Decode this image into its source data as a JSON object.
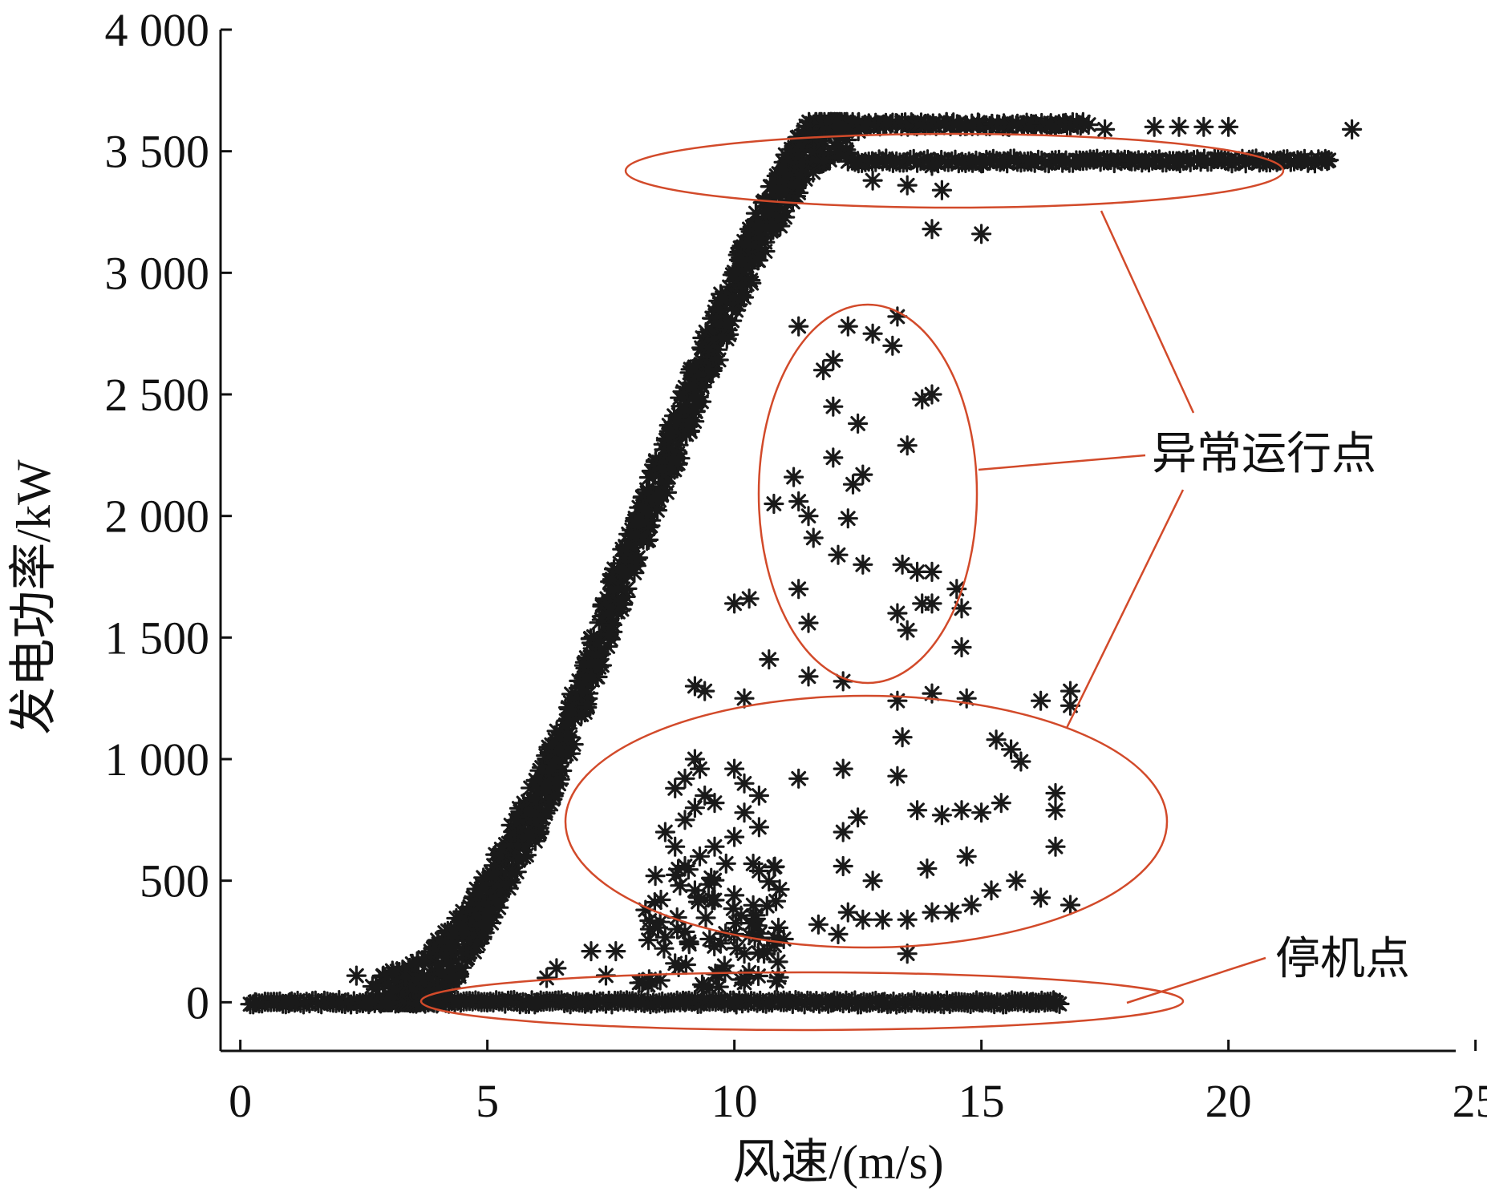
{
  "chart_data": {
    "type": "scatter",
    "marker": "asterisk",
    "xlabel": "风速/(m/s)",
    "ylabel": "发电功率/kW",
    "xlim": [
      -0.4,
      24.6
    ],
    "ylim": [
      -200,
      4000
    ],
    "x_ticks": [
      0,
      5,
      10,
      15,
      20,
      25
    ],
    "x_tick_labels": [
      "0",
      "5",
      "10",
      "15",
      "20",
      "25"
    ],
    "y_ticks": [
      0,
      500,
      1000,
      1500,
      2000,
      2500,
      3000,
      3500,
      4000
    ],
    "y_tick_labels": [
      "0",
      "500",
      "1 000",
      "1 500",
      "2 000",
      "2 500",
      "3 000",
      "3 500",
      "4 000"
    ],
    "grid": false,
    "colors": {
      "points": "#1a1a1a",
      "annotation": "#d24a2a",
      "axis": "#111111"
    },
    "series": [
      {
        "values_description_excluded": true,
        "normal_curve": [
          [
            0,
            0
          ],
          [
            3,
            0
          ],
          [
            3.8,
            80
          ],
          [
            4.5,
            250
          ],
          [
            5,
            420
          ],
          [
            5.5,
            620
          ],
          [
            6,
            800
          ],
          [
            6.5,
            1050
          ],
          [
            7,
            1320
          ],
          [
            7.5,
            1620
          ],
          [
            8,
            1900
          ],
          [
            8.5,
            2150
          ],
          [
            9,
            2420
          ],
          [
            9.5,
            2680
          ],
          [
            10,
            2920
          ],
          [
            10.5,
            3150
          ],
          [
            11,
            3350
          ],
          [
            11.5,
            3520
          ],
          [
            12,
            3600
          ],
          [
            13,
            3620
          ],
          [
            14,
            3620
          ],
          [
            15,
            3620
          ],
          [
            16,
            3620
          ],
          [
            17,
            3610
          ]
        ],
        "stopped_points": [
          [
            0.3,
            0
          ],
          [
            1,
            0
          ],
          [
            2,
            0
          ],
          [
            3,
            0
          ],
          [
            4,
            0
          ],
          [
            5,
            0
          ],
          [
            6,
            0
          ],
          [
            7,
            0
          ],
          [
            8,
            0
          ],
          [
            9,
            0
          ],
          [
            10,
            0
          ],
          [
            11,
            0
          ],
          [
            12,
            0
          ],
          [
            13,
            0
          ],
          [
            14,
            0
          ],
          [
            15,
            0
          ],
          [
            16,
            0
          ],
          [
            16.5,
            0
          ]
        ],
        "anomalous_high": [
          [
            12.5,
            3460
          ],
          [
            14,
            3440
          ],
          [
            15,
            3450
          ],
          [
            16,
            3460
          ],
          [
            17,
            3460
          ],
          [
            18,
            3460
          ],
          [
            19,
            3460
          ],
          [
            20,
            3460
          ],
          [
            21,
            3460
          ],
          [
            22,
            3460
          ],
          [
            12.8,
            3380
          ],
          [
            13.5,
            3360
          ],
          [
            14.2,
            3340
          ],
          [
            14,
            3180
          ],
          [
            15,
            3160
          ],
          [
            18.5,
            3600
          ],
          [
            19,
            3600
          ],
          [
            19.5,
            3600
          ],
          [
            20,
            3600
          ],
          [
            22.5,
            3590
          ],
          [
            17.5,
            3590
          ]
        ],
        "anomalous_mid": [
          [
            11.3,
            2780
          ],
          [
            12.3,
            2780
          ],
          [
            12.8,
            2750
          ],
          [
            13.3,
            2820
          ],
          [
            12,
            2640
          ],
          [
            11.8,
            2600
          ],
          [
            13.2,
            2700
          ],
          [
            14,
            2500
          ],
          [
            13.8,
            2480
          ],
          [
            12,
            2450
          ],
          [
            12.5,
            2380
          ],
          [
            13.5,
            2290
          ],
          [
            12,
            2240
          ],
          [
            12.6,
            2170
          ],
          [
            11.2,
            2160
          ],
          [
            12.4,
            2130
          ],
          [
            10.8,
            2050
          ],
          [
            11.3,
            2060
          ],
          [
            11.5,
            2000
          ],
          [
            12.3,
            1990
          ],
          [
            11.6,
            1910
          ],
          [
            12.1,
            1840
          ],
          [
            12.6,
            1800
          ],
          [
            13.4,
            1800
          ],
          [
            13.7,
            1770
          ],
          [
            14,
            1770
          ],
          [
            14.5,
            1700
          ],
          [
            13.8,
            1640
          ],
          [
            14,
            1640
          ],
          [
            13.3,
            1600
          ],
          [
            14.6,
            1620
          ],
          [
            13.5,
            1530
          ],
          [
            11.3,
            1700
          ],
          [
            11.5,
            1560
          ],
          [
            10,
            1640
          ],
          [
            10.3,
            1660
          ],
          [
            10.7,
            1410
          ],
          [
            14.6,
            1460
          ],
          [
            11.5,
            1340
          ],
          [
            12.2,
            1320
          ],
          [
            9.2,
            1300
          ],
          [
            9.4,
            1280
          ],
          [
            10.2,
            1250
          ],
          [
            13.3,
            1240
          ],
          [
            14,
            1270
          ],
          [
            14.7,
            1250
          ],
          [
            16.2,
            1240
          ],
          [
            16.8,
            1280
          ],
          [
            16.8,
            1220
          ]
        ],
        "anomalous_low": [
          [
            9.2,
            1000
          ],
          [
            9.3,
            960
          ],
          [
            9,
            920
          ],
          [
            8.8,
            880
          ],
          [
            9.4,
            850
          ],
          [
            9.2,
            800
          ],
          [
            9,
            750
          ],
          [
            9.6,
            820
          ],
          [
            10,
            960
          ],
          [
            10.2,
            900
          ],
          [
            10.5,
            850
          ],
          [
            10.2,
            780
          ],
          [
            10.5,
            720
          ],
          [
            10,
            680
          ],
          [
            9.6,
            640
          ],
          [
            9.3,
            600
          ],
          [
            8.6,
            700
          ],
          [
            8.8,
            640
          ],
          [
            9,
            560
          ],
          [
            8.4,
            520
          ],
          [
            8.9,
            480
          ],
          [
            9.2,
            460
          ],
          [
            9.6,
            420
          ],
          [
            10,
            440
          ],
          [
            10.5,
            540
          ],
          [
            11.3,
            920
          ],
          [
            12.2,
            960
          ],
          [
            12.5,
            760
          ],
          [
            12.2,
            700
          ],
          [
            13.3,
            930
          ],
          [
            13.4,
            1090
          ],
          [
            13.7,
            790
          ],
          [
            14.2,
            770
          ],
          [
            14.6,
            790
          ],
          [
            15,
            780
          ],
          [
            15.4,
            820
          ],
          [
            15.8,
            990
          ],
          [
            15.6,
            1040
          ],
          [
            15.3,
            1080
          ],
          [
            16.5,
            860
          ],
          [
            16.5,
            790
          ],
          [
            16.5,
            640
          ],
          [
            12.2,
            560
          ],
          [
            12.3,
            370
          ],
          [
            12.6,
            340
          ],
          [
            13,
            340
          ],
          [
            13.5,
            340
          ],
          [
            14,
            370
          ],
          [
            14.4,
            370
          ],
          [
            14.8,
            400
          ],
          [
            15.2,
            460
          ],
          [
            15.7,
            500
          ],
          [
            16.2,
            430
          ],
          [
            16.8,
            400
          ],
          [
            13.9,
            550
          ],
          [
            14.7,
            600
          ],
          [
            12.8,
            500
          ],
          [
            8.2,
            380
          ],
          [
            8.5,
            330
          ],
          [
            9,
            290
          ],
          [
            9.5,
            260
          ],
          [
            10,
            280
          ],
          [
            11,
            260
          ],
          [
            11.7,
            320
          ],
          [
            12.1,
            280
          ],
          [
            13.5,
            200
          ],
          [
            10.2,
            200
          ],
          [
            10.6,
            200
          ],
          [
            9.8,
            150
          ],
          [
            8.8,
            160
          ],
          [
            7.6,
            210
          ],
          [
            7.1,
            210
          ],
          [
            6.4,
            140
          ],
          [
            6.2,
            100
          ],
          [
            7.4,
            110
          ],
          [
            8.5,
            90
          ],
          [
            9.5,
            60
          ],
          [
            10.2,
            80
          ]
        ]
      }
    ],
    "annotations": [
      {
        "text": "异常运行点"
      },
      {
        "text": "停机点"
      }
    ]
  }
}
